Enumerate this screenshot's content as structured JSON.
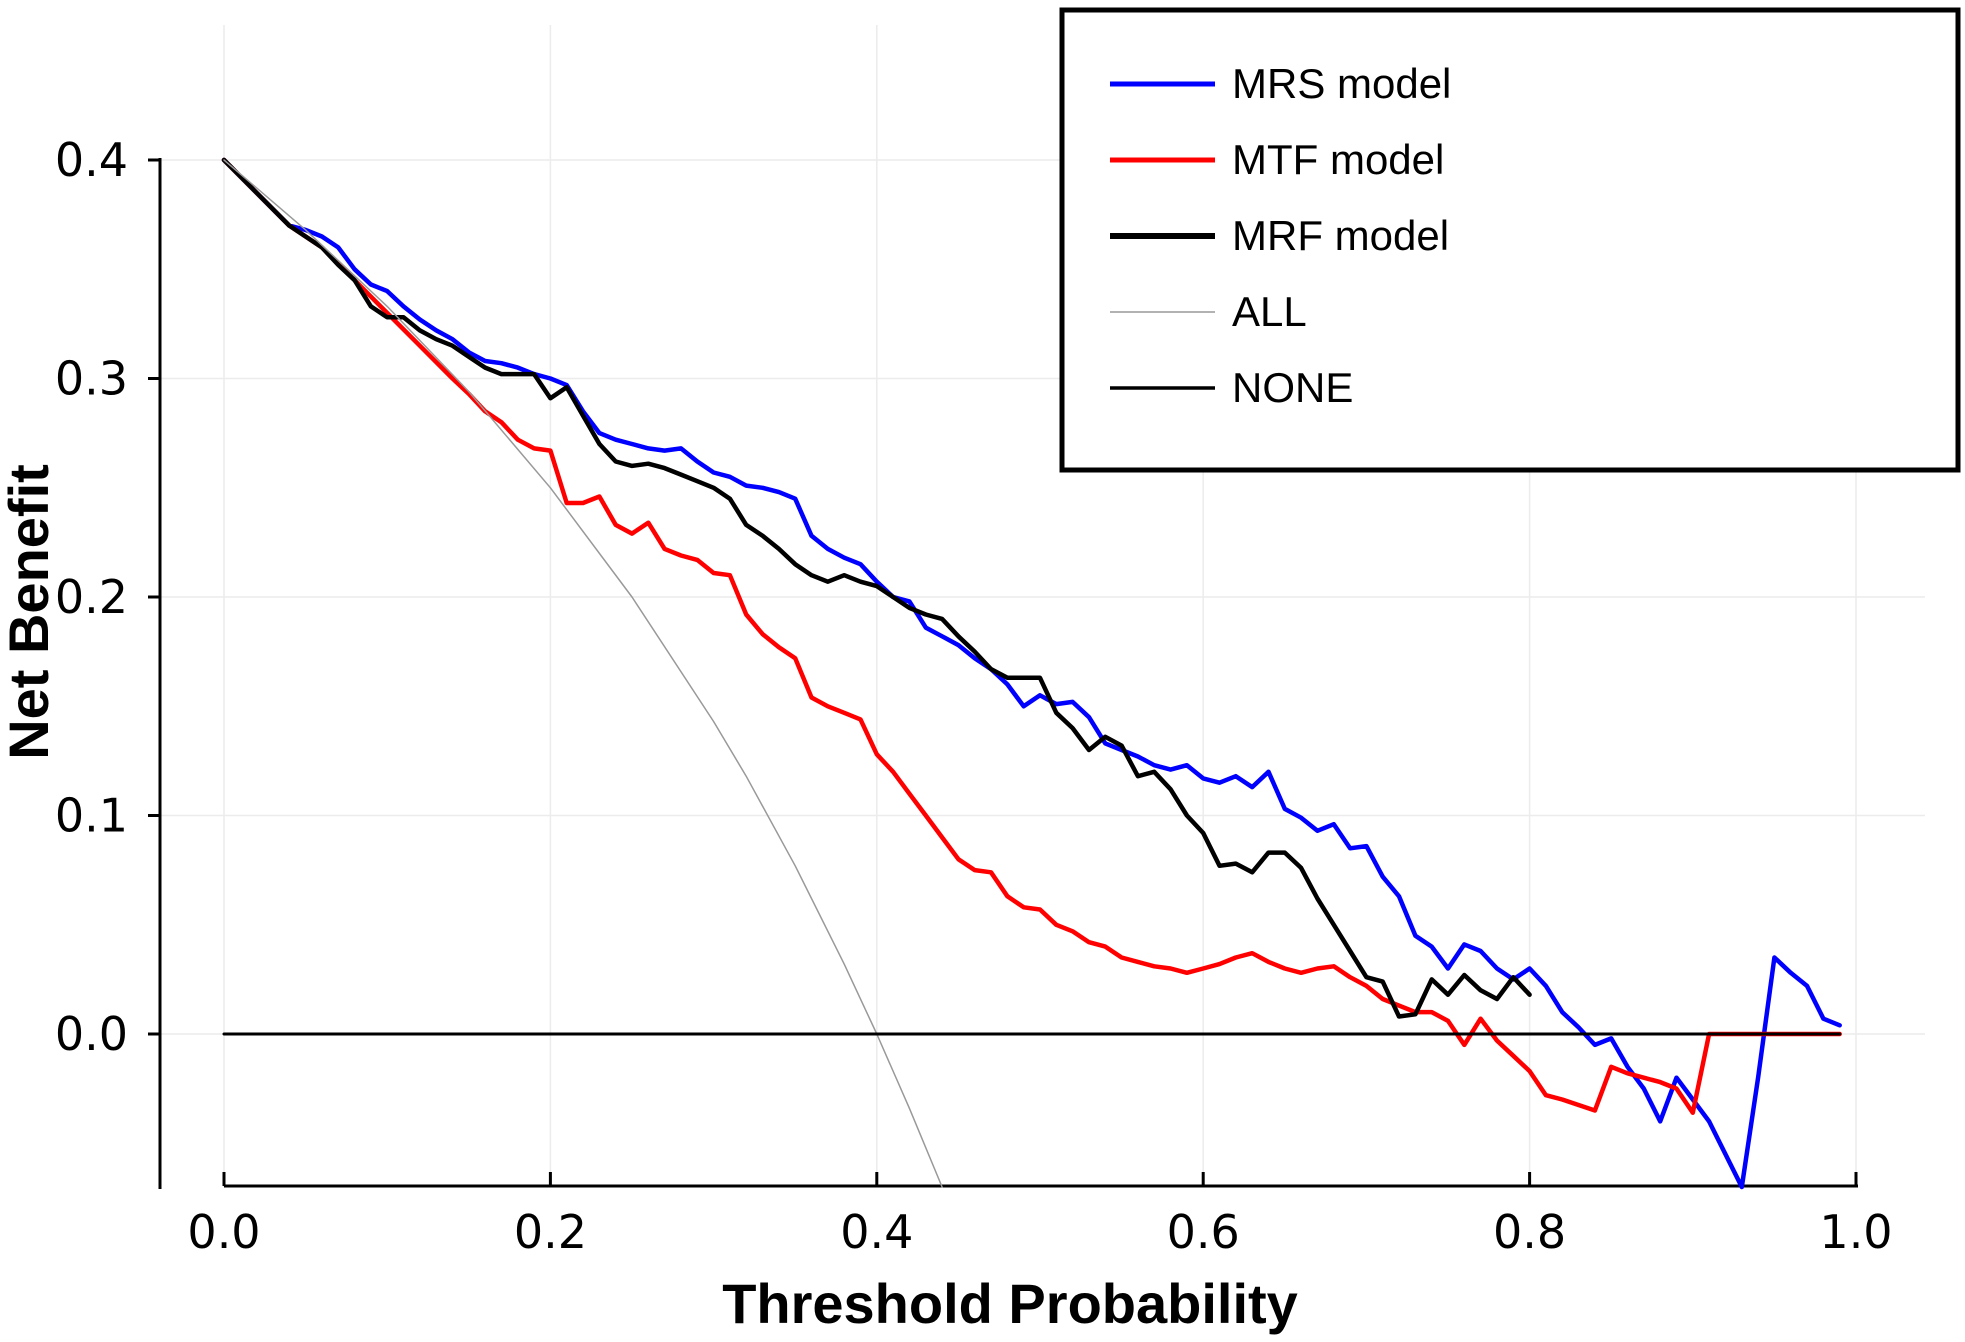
{
  "chart_data": {
    "type": "line",
    "title": "",
    "xlabel": "Threshold Probability",
    "ylabel": "Net Benefit",
    "xlim": [
      0.0,
      1.0
    ],
    "ylim": [
      -0.07,
      0.4
    ],
    "x_ticks": [
      "0.0",
      "0.2",
      "0.4",
      "0.6",
      "0.8",
      "1.0"
    ],
    "y_ticks": [
      "0.0",
      "0.1",
      "0.2",
      "0.3",
      "0.4"
    ],
    "grid": true,
    "legend_position": "top-right",
    "series": [
      {
        "name": "MRS model",
        "color": "#0000ff",
        "x": [
          0.0,
          0.02,
          0.04,
          0.05,
          0.06,
          0.07,
          0.08,
          0.09,
          0.1,
          0.11,
          0.12,
          0.13,
          0.14,
          0.15,
          0.16,
          0.17,
          0.18,
          0.19,
          0.2,
          0.21,
          0.22,
          0.23,
          0.24,
          0.25,
          0.26,
          0.27,
          0.28,
          0.29,
          0.3,
          0.31,
          0.32,
          0.33,
          0.34,
          0.35,
          0.36,
          0.37,
          0.38,
          0.39,
          0.4,
          0.41,
          0.42,
          0.43,
          0.44,
          0.45,
          0.46,
          0.47,
          0.48,
          0.49,
          0.5,
          0.51,
          0.52,
          0.53,
          0.54,
          0.55,
          0.56,
          0.57,
          0.58,
          0.59,
          0.6,
          0.61,
          0.62,
          0.63,
          0.64,
          0.65,
          0.66,
          0.67,
          0.68,
          0.69,
          0.7,
          0.71,
          0.72,
          0.73,
          0.74,
          0.75,
          0.76,
          0.77,
          0.78,
          0.79,
          0.8,
          0.81,
          0.82,
          0.83,
          0.84,
          0.85,
          0.86,
          0.87,
          0.88,
          0.89,
          0.9,
          0.91,
          0.93,
          0.94,
          0.95,
          0.96,
          0.97,
          0.98,
          0.99
        ],
        "y": [
          0.4,
          0.385,
          0.37,
          0.368,
          0.365,
          0.36,
          0.35,
          0.343,
          0.34,
          0.333,
          0.327,
          0.322,
          0.318,
          0.312,
          0.308,
          0.307,
          0.305,
          0.302,
          0.3,
          0.297,
          0.285,
          0.275,
          0.272,
          0.27,
          0.268,
          0.267,
          0.268,
          0.262,
          0.257,
          0.255,
          0.251,
          0.25,
          0.248,
          0.245,
          0.228,
          0.222,
          0.218,
          0.215,
          0.207,
          0.2,
          0.198,
          0.186,
          0.182,
          0.178,
          0.172,
          0.167,
          0.16,
          0.15,
          0.155,
          0.151,
          0.152,
          0.145,
          0.133,
          0.13,
          0.127,
          0.123,
          0.121,
          0.123,
          0.117,
          0.115,
          0.118,
          0.113,
          0.12,
          0.103,
          0.099,
          0.093,
          0.096,
          0.085,
          0.086,
          0.072,
          0.063,
          0.045,
          0.04,
          0.03,
          0.041,
          0.038,
          0.03,
          0.025,
          0.03,
          0.022,
          0.01,
          0.003,
          -0.005,
          -0.002,
          -0.015,
          -0.025,
          -0.04,
          -0.02,
          -0.03,
          -0.04,
          -0.07,
          -0.02,
          0.035,
          0.028,
          0.022,
          0.007,
          0.004
        ]
      },
      {
        "name": "MTF model",
        "color": "#ff0000",
        "x": [
          0.0,
          0.02,
          0.04,
          0.06,
          0.08,
          0.1,
          0.12,
          0.14,
          0.15,
          0.16,
          0.17,
          0.18,
          0.19,
          0.2,
          0.21,
          0.22,
          0.23,
          0.24,
          0.25,
          0.26,
          0.27,
          0.28,
          0.29,
          0.3,
          0.31,
          0.32,
          0.33,
          0.34,
          0.35,
          0.36,
          0.37,
          0.38,
          0.39,
          0.4,
          0.41,
          0.42,
          0.43,
          0.44,
          0.45,
          0.46,
          0.47,
          0.48,
          0.49,
          0.5,
          0.51,
          0.52,
          0.53,
          0.54,
          0.55,
          0.56,
          0.57,
          0.58,
          0.59,
          0.6,
          0.61,
          0.62,
          0.63,
          0.64,
          0.65,
          0.66,
          0.67,
          0.68,
          0.69,
          0.7,
          0.71,
          0.72,
          0.73,
          0.74,
          0.75,
          0.76,
          0.77,
          0.78,
          0.79,
          0.8,
          0.81,
          0.82,
          0.84,
          0.85,
          0.86,
          0.87,
          0.88,
          0.89,
          0.9,
          0.91,
          0.93,
          0.95,
          0.97,
          0.99
        ],
        "y": [
          0.4,
          0.385,
          0.37,
          0.36,
          0.345,
          0.33,
          0.315,
          0.3,
          0.293,
          0.285,
          0.28,
          0.272,
          0.268,
          0.267,
          0.243,
          0.243,
          0.246,
          0.233,
          0.229,
          0.234,
          0.222,
          0.219,
          0.217,
          0.211,
          0.21,
          0.192,
          0.183,
          0.177,
          0.172,
          0.154,
          0.15,
          0.147,
          0.144,
          0.128,
          0.12,
          0.11,
          0.1,
          0.09,
          0.08,
          0.075,
          0.074,
          0.063,
          0.058,
          0.057,
          0.05,
          0.047,
          0.042,
          0.04,
          0.035,
          0.033,
          0.031,
          0.03,
          0.028,
          0.03,
          0.032,
          0.035,
          0.037,
          0.033,
          0.03,
          0.028,
          0.03,
          0.031,
          0.026,
          0.022,
          0.016,
          0.013,
          0.01,
          0.01,
          0.006,
          -0.005,
          0.007,
          -0.003,
          -0.01,
          -0.017,
          -0.028,
          -0.03,
          -0.035,
          -0.015,
          -0.018,
          -0.02,
          -0.022,
          -0.025,
          -0.036,
          0.0,
          0.0,
          0.0,
          0.0,
          0.0
        ]
      },
      {
        "name": "MRF model",
        "color": "#000000",
        "x": [
          0.0,
          0.02,
          0.04,
          0.06,
          0.07,
          0.08,
          0.09,
          0.1,
          0.11,
          0.12,
          0.13,
          0.14,
          0.15,
          0.16,
          0.17,
          0.18,
          0.19,
          0.2,
          0.21,
          0.22,
          0.23,
          0.24,
          0.25,
          0.26,
          0.27,
          0.28,
          0.29,
          0.3,
          0.31,
          0.32,
          0.33,
          0.34,
          0.35,
          0.36,
          0.37,
          0.38,
          0.39,
          0.4,
          0.41,
          0.42,
          0.43,
          0.44,
          0.45,
          0.46,
          0.47,
          0.48,
          0.49,
          0.5,
          0.51,
          0.52,
          0.53,
          0.54,
          0.55,
          0.56,
          0.57,
          0.58,
          0.59,
          0.6,
          0.61,
          0.62,
          0.63,
          0.64,
          0.65,
          0.66,
          0.67,
          0.68,
          0.69,
          0.7,
          0.71,
          0.72,
          0.73,
          0.74,
          0.75,
          0.76,
          0.77,
          0.78,
          0.79,
          0.8
        ],
        "y": [
          0.4,
          0.385,
          0.37,
          0.36,
          0.352,
          0.345,
          0.333,
          0.328,
          0.328,
          0.322,
          0.318,
          0.315,
          0.31,
          0.305,
          0.302,
          0.302,
          0.302,
          0.291,
          0.296,
          0.283,
          0.27,
          0.262,
          0.26,
          0.261,
          0.259,
          0.256,
          0.253,
          0.25,
          0.245,
          0.233,
          0.228,
          0.222,
          0.215,
          0.21,
          0.207,
          0.21,
          0.207,
          0.205,
          0.2,
          0.195,
          0.192,
          0.19,
          0.182,
          0.175,
          0.167,
          0.163,
          0.163,
          0.163,
          0.147,
          0.14,
          0.13,
          0.136,
          0.132,
          0.118,
          0.12,
          0.112,
          0.1,
          0.092,
          0.077,
          0.078,
          0.074,
          0.083,
          0.083,
          0.076,
          0.062,
          0.05,
          0.038,
          0.026,
          0.024,
          0.008,
          0.009,
          0.025,
          0.018,
          0.027,
          0.02,
          0.016,
          0.026,
          0.018
        ]
      },
      {
        "name": "ALL",
        "color": "#999999",
        "x": [
          0.0,
          0.05,
          0.1,
          0.15,
          0.2,
          0.25,
          0.3,
          0.32,
          0.35,
          0.38,
          0.4,
          0.42,
          0.44
        ],
        "y": [
          0.4,
          0.368,
          0.333,
          0.294,
          0.25,
          0.2,
          0.143,
          0.118,
          0.077,
          0.032,
          0.0,
          -0.034,
          -0.071
        ]
      },
      {
        "name": "NONE",
        "color": "#000000",
        "x": [
          0.0,
          0.99
        ],
        "y": [
          0.0,
          0.0
        ]
      }
    ]
  }
}
